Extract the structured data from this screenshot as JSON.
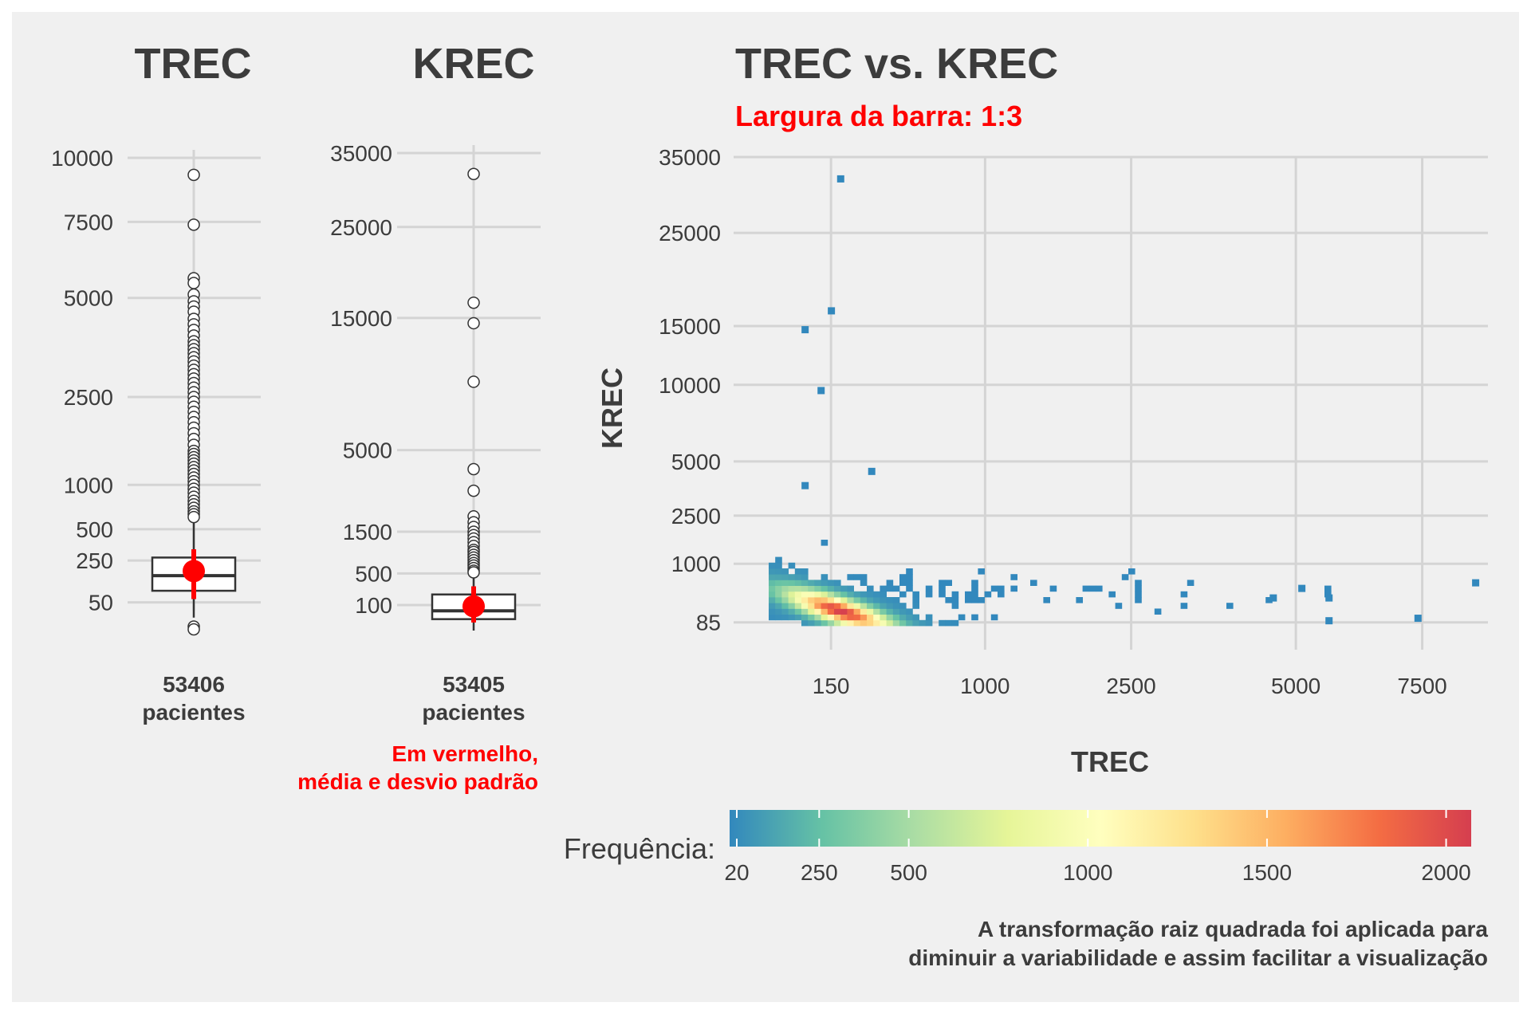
{
  "colors": {
    "background": "#f0f0f0",
    "outer": "#ffffff",
    "grid": "#d4d4d4",
    "text": "#3c3c3c",
    "accent": "#ff0000",
    "tile_low": "#3288bd"
  },
  "chart_data": [
    {
      "type": "box",
      "title": "TREC",
      "ytick_labels": [
        "10000",
        "7500",
        "5000",
        "2500",
        "1000",
        "500",
        "250",
        "50"
      ],
      "yticks": [
        10000,
        7500,
        5000,
        2500,
        1000,
        500,
        250,
        50
      ],
      "ylim": [
        0,
        10000
      ],
      "scale": "sqrt",
      "category_label": [
        "53406",
        "pacientes"
      ],
      "box": {
        "q1": 90,
        "median": 160,
        "q3": 270,
        "whisker_low": 15,
        "whisker_high": 600
      },
      "mean": 185,
      "sd_low": 60,
      "sd_high": 330,
      "outliers": [
        9300,
        7400,
        5600,
        5450,
        5100,
        4900,
        4750,
        4600,
        4400,
        4250,
        4100,
        3950,
        3800,
        3700,
        3600,
        3500,
        3400,
        3300,
        3200,
        3100,
        3000,
        2900,
        2800,
        2700,
        2600,
        2500,
        2400,
        2300,
        2200,
        2100,
        2000,
        1900,
        1800,
        1700,
        1600,
        1500,
        1450,
        1400,
        1350,
        1300,
        1250,
        1200,
        1150,
        1100,
        1050,
        1000,
        950,
        900,
        850,
        800,
        760,
        720,
        680,
        650,
        620,
        4,
        2
      ]
    },
    {
      "type": "box",
      "title": "KREC",
      "ytick_labels": [
        "35000",
        "25000",
        "15000",
        "5000",
        "1500",
        "500",
        "100"
      ],
      "yticks": [
        35000,
        25000,
        15000,
        5000,
        1500,
        500,
        100
      ],
      "ylim": [
        0,
        35000
      ],
      "scale": "sqrt",
      "category_label": [
        "53405",
        "pacientes"
      ],
      "box": {
        "q1": 20,
        "median": 60,
        "q3": 200,
        "whisker_low": 0,
        "whisker_high": 480
      },
      "mean": 90,
      "sd_low": 10,
      "sd_high": 300,
      "outliers": [
        32000,
        16500,
        14500,
        9500,
        4000,
        3000,
        2000,
        1800,
        1650,
        1500,
        1400,
        1300,
        1200,
        1100,
        1000,
        950,
        880,
        820,
        760,
        700,
        650,
        600,
        550,
        520
      ]
    },
    {
      "type": "heatmap",
      "title": "TREC vs. KREC",
      "subtitle": "Largura da barra: 1:3",
      "xlabel": "TREC",
      "ylabel": "KREC",
      "scale": "sqrt",
      "xticks": [
        150,
        1000,
        2500,
        5000,
        7500
      ],
      "xtick_labels": [
        "150",
        "1000",
        "2500",
        "5000",
        "7500"
      ],
      "yticks": [
        35000,
        25000,
        15000,
        10000,
        5000,
        2500,
        1000,
        85
      ],
      "ytick_labels": [
        "35000",
        "25000",
        "15000",
        "10000",
        "5000",
        "2500",
        "1000",
        "85"
      ],
      "xlim": [
        0,
        9000
      ],
      "ylim": [
        0,
        35000
      ],
      "outlier_tiles": [
        {
          "x": 180,
          "y": 32000
        },
        {
          "x": 150,
          "y": 16500
        },
        {
          "x": 80,
          "y": 14700
        },
        {
          "x": 120,
          "y": 9600
        },
        {
          "x": 300,
          "y": 4500
        },
        {
          "x": 80,
          "y": 3800
        },
        {
          "x": 8700,
          "y": 600
        },
        {
          "x": 7400,
          "y": 120
        },
        {
          "x": 5600,
          "y": 350
        },
        {
          "x": 5600,
          "y": 100
        },
        {
          "x": 5100,
          "y": 500
        },
        {
          "x": 4600,
          "y": 350
        }
      ],
      "legend": {
        "title": "Frequência:",
        "ticks": [
          20,
          250,
          500,
          1000,
          1500,
          2000
        ],
        "tick_labels": [
          "20",
          "250",
          "500",
          "1000",
          "1500",
          "2000"
        ],
        "range": [
          0,
          2070
        ],
        "colors": [
          "#3288bd",
          "#66c2a5",
          "#abdda4",
          "#e6f598",
          "#ffffbf",
          "#fee08b",
          "#fdae61",
          "#f46d43",
          "#d53e4f"
        ]
      }
    }
  ],
  "notes": {
    "red_line1": "Em vermelho,",
    "red_line2": "média e desvio padrão",
    "caption_line1": "A transformação raiz quadrada foi aplicada para",
    "caption_line2": "diminuir a variabilidade e assim facilitar a visualização"
  }
}
